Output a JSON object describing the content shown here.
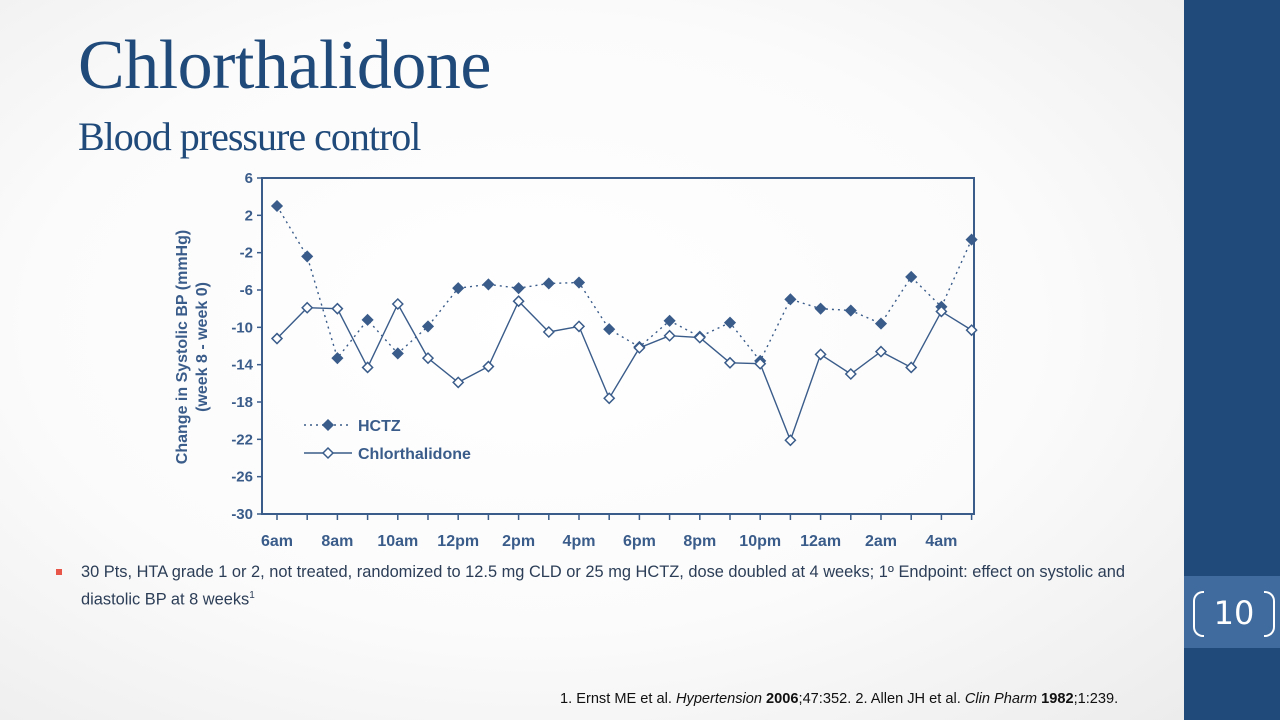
{
  "slide": {
    "title": "Chlorthalidone",
    "subtitle": "Blood pressure control",
    "page_number": "10",
    "bullet": {
      "text": "30 Pts, HTA grade 1 or 2, not treated, randomized to 12.5 mg CLD or 25 mg HCTZ, dose doubled at 4 weeks; 1º Endpoint: effect on systolic and diastolic BP at 8 weeks",
      "superscript": "1"
    },
    "references": [
      {
        "prefix": "1. Ernst ME et al. ",
        "journal": "Hypertension",
        "year": "2006",
        "rest": ";47:352. "
      },
      {
        "prefix": "2. Allen JH et al. ",
        "journal": "Clin Pharm",
        "year": "1982",
        "rest": ";1:239."
      }
    ]
  },
  "colors": {
    "brand": "#1f4a7a",
    "page_box": "#3f6b9e",
    "chart_ink": "#3a5c8a",
    "bullet_marker": "#e8564a"
  },
  "chart_data": {
    "type": "line",
    "ylabel": [
      "Change in Systolic BP (mmHg)",
      "(week 8 - week 0)"
    ],
    "xlabel": "",
    "ylim": [
      -30,
      6
    ],
    "yticks": [
      6,
      2,
      -2,
      -6,
      -10,
      -14,
      -18,
      -22,
      -26,
      -30
    ],
    "x": [
      "6am",
      "7am",
      "8am",
      "9am",
      "10am",
      "11am",
      "12pm",
      "1pm",
      "2pm",
      "3pm",
      "4pm",
      "5pm",
      "6pm",
      "7pm",
      "8pm",
      "9pm",
      "10pm",
      "11pm",
      "12am",
      "1am",
      "2am",
      "3am",
      "4am",
      "5am"
    ],
    "xticklabels": [
      "6am",
      "8am",
      "10am",
      "12pm",
      "2pm",
      "4pm",
      "6pm",
      "8pm",
      "10pm",
      "12am",
      "2am",
      "4am"
    ],
    "legend_position": "bottom-left",
    "series": [
      {
        "name": "HCTZ",
        "style": "dotted",
        "marker": "filled-diamond",
        "values": [
          3,
          -2.4,
          -13.3,
          -9.2,
          -12.8,
          -9.9,
          -5.8,
          -5.4,
          -5.8,
          -5.3,
          -5.2,
          -10.2,
          -12.1,
          -9.3,
          -11.0,
          -9.5,
          -13.6,
          -7.0,
          -8.0,
          -8.2,
          -9.6,
          -4.6,
          -7.8,
          -0.6
        ]
      },
      {
        "name": "Chlorthalidone",
        "style": "solid",
        "marker": "open-diamond",
        "values": [
          -11.2,
          -7.9,
          -8.0,
          -14.3,
          -7.5,
          -13.3,
          -15.9,
          -14.2,
          -7.2,
          -10.5,
          -9.9,
          -17.6,
          -12.2,
          -10.9,
          -11.1,
          -13.8,
          -13.9,
          -22.1,
          -12.9,
          -15.0,
          -12.6,
          -14.3,
          -8.3,
          -10.3
        ]
      }
    ]
  }
}
